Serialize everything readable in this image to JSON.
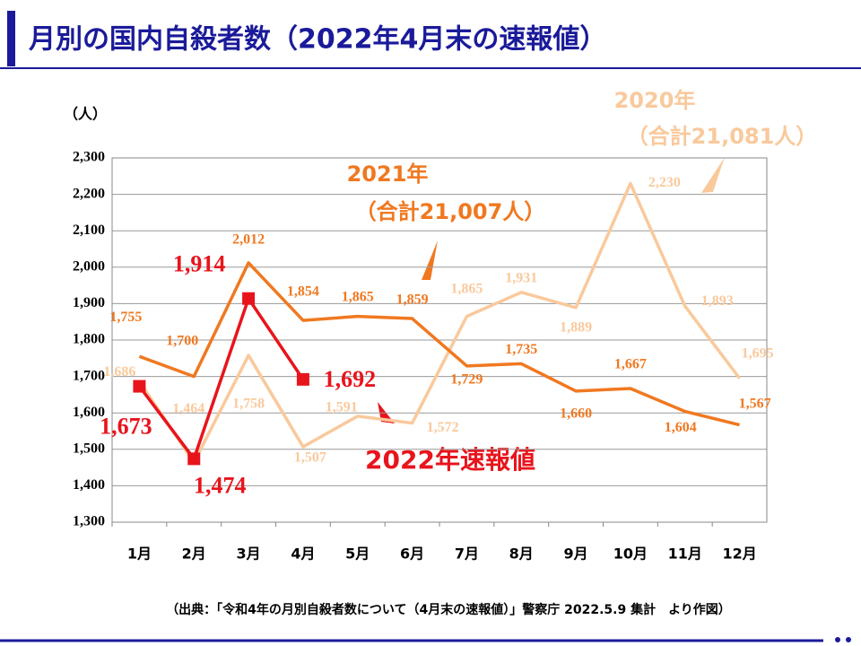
{
  "chart_data": {
    "type": "line",
    "title": "月別の国内自殺者数（2022年4月末の速報値）",
    "y_label": "（人）",
    "source": "（出典：「令和4年の月別自殺者数について（4月末の速報値）」警察庁 2022.5.9 集計　より作図）",
    "annotations": [
      "2020年",
      "（合計21,081人）",
      "2021年",
      "（合計21,007人）",
      "2022年速報値"
    ],
    "categories": [
      "1月",
      "2月",
      "3月",
      "4月",
      "5月",
      "6月",
      "7月",
      "8月",
      "9月",
      "10月",
      "11月",
      "12月"
    ],
    "ylim": [
      1300,
      2300
    ],
    "yticks": [
      {
        "value": 1300,
        "label": "1,300"
      },
      {
        "value": 1400,
        "label": "1,400"
      },
      {
        "value": 1500,
        "label": "1,500"
      },
      {
        "value": 1600,
        "label": "1,600"
      },
      {
        "value": 1700,
        "label": "1,700"
      },
      {
        "value": 1800,
        "label": "1,800"
      },
      {
        "value": 1900,
        "label": "1,900"
      },
      {
        "value": 2000,
        "label": "2,000"
      },
      {
        "value": 2100,
        "label": "2,100"
      },
      {
        "value": 2200,
        "label": "2,200"
      },
      {
        "value": 2300,
        "label": "2,300"
      }
    ],
    "grid": true,
    "series": [
      {
        "name": "2020年",
        "color": "#f9c99c",
        "values": [
          1686,
          1464,
          1758,
          1507,
          1591,
          1572,
          1865,
          1931,
          1889,
          2230,
          1893,
          1695
        ],
        "value_labels": [
          "1,686",
          "1,464",
          "1,758",
          "1,507",
          "1,591",
          "1,572",
          "1,865",
          "1,931",
          "1,889",
          "2,230",
          "1,893",
          "1,695"
        ]
      },
      {
        "name": "2021年",
        "color": "#f07820",
        "values": [
          1755,
          1700,
          2012,
          1854,
          1865,
          1859,
          1729,
          1735,
          1660,
          1667,
          1604,
          1567
        ],
        "value_labels": [
          "1,755",
          "1,700",
          "2,012",
          "1,854",
          "1,865",
          "1,859",
          "1,729",
          "1,735",
          "1,660",
          "1,667",
          "1,604",
          "1,567"
        ]
      },
      {
        "name": "2022年速報値",
        "color": "#e8141c",
        "values": [
          1673,
          1474,
          1914,
          1692,
          null,
          null,
          null,
          null,
          null,
          null,
          null,
          null
        ],
        "value_labels": [
          "1,673",
          "1,474",
          "1,914",
          "1,692",
          null,
          null,
          null,
          null,
          null,
          null,
          null,
          null
        ]
      }
    ]
  }
}
